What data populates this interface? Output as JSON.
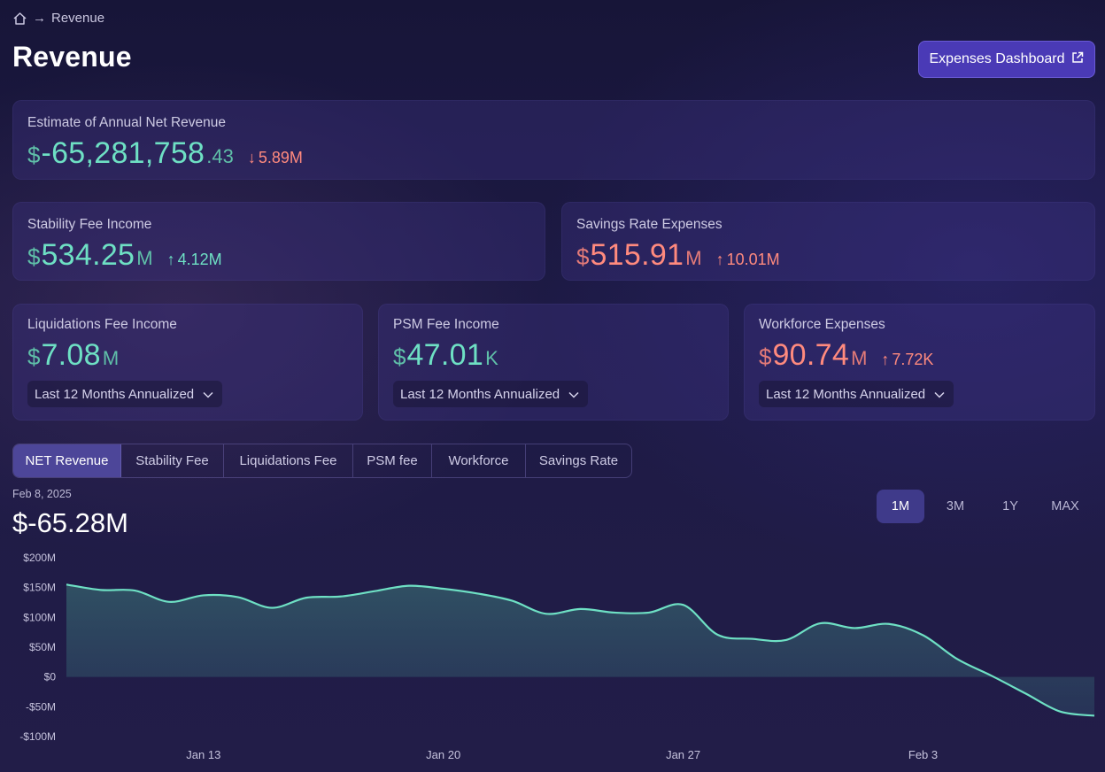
{
  "breadcrumb": {
    "home_icon": "home-icon",
    "arrow": "→",
    "current": "Revenue"
  },
  "page": {
    "title": "Revenue"
  },
  "header": {
    "expenses_button_label": "Expenses Dashboard",
    "expenses_button_icon": "external-link-icon"
  },
  "colors": {
    "accent": "#4a3ab6",
    "positive": "#6ee0c4",
    "negative": "#ff8a7e",
    "line": "#6ee0c4"
  },
  "cards": {
    "net": {
      "label": "Estimate of Annual Net Revenue",
      "currency": "$",
      "value": "-65,281,758",
      "suffix": ".43",
      "delta_arrow": "↓",
      "delta": "5.89M"
    },
    "stability": {
      "label": "Stability Fee Income",
      "currency": "$",
      "value": "534.25",
      "suffix": "M",
      "delta_arrow": "↑",
      "delta": "4.12M"
    },
    "savings": {
      "label": "Savings Rate Expenses",
      "currency": "$",
      "value": "515.91",
      "suffix": "M",
      "delta_arrow": "↑",
      "delta": "10.01M"
    },
    "liquidations": {
      "label": "Liquidations Fee Income",
      "currency": "$",
      "value": "7.08",
      "suffix": "M",
      "dropdown": "Last 12 Months Annualized"
    },
    "psm": {
      "label": "PSM Fee Income",
      "currency": "$",
      "value": "47.01",
      "suffix": "K",
      "dropdown": "Last 12 Months Annualized"
    },
    "workforce": {
      "label": "Workforce Expenses",
      "currency": "$",
      "value": "90.74",
      "suffix": "M",
      "delta_arrow": "↑",
      "delta": "7.72K",
      "dropdown": "Last 12 Months Annualized"
    }
  },
  "tabs": [
    {
      "label": "NET Revenue",
      "active": true
    },
    {
      "label": "Stability Fee",
      "active": false
    },
    {
      "label": "Liquidations Fee",
      "active": false
    },
    {
      "label": "PSM fee",
      "active": false
    },
    {
      "label": "Workforce",
      "active": false
    },
    {
      "label": "Savings Rate",
      "active": false
    }
  ],
  "chart_header": {
    "date": "Feb 8, 2025",
    "value": "$-65.28M"
  },
  "ranges": [
    {
      "label": "1M",
      "active": true
    },
    {
      "label": "3M",
      "active": false
    },
    {
      "label": "1Y",
      "active": false
    },
    {
      "label": "MAX",
      "active": false
    }
  ],
  "chart_data": {
    "type": "area",
    "title": "",
    "xlabel": "",
    "ylabel": "",
    "y_tick_labels": [
      "$200M",
      "$150M",
      "$100M",
      "$50M",
      "$0",
      "-$50M",
      "-$100M"
    ],
    "y_ticks": [
      200,
      150,
      100,
      50,
      0,
      -50,
      -100
    ],
    "ylim": [
      -100,
      200
    ],
    "x_tick_labels": [
      "Jan 13",
      "Jan 20",
      "Jan 27",
      "Feb 3"
    ],
    "x_ticks": [
      "2025-01-13",
      "2025-01-20",
      "2025-01-27",
      "2025-02-03"
    ],
    "x_range": [
      "2025-01-09",
      "2025-02-08"
    ],
    "grid": false,
    "series": [
      {
        "x": [
          "2025-01-09",
          "2025-01-10",
          "2025-01-11",
          "2025-01-12",
          "2025-01-13",
          "2025-01-14",
          "2025-01-15",
          "2025-01-16",
          "2025-01-17",
          "2025-01-18",
          "2025-01-19",
          "2025-01-20",
          "2025-01-21",
          "2025-01-22",
          "2025-01-23",
          "2025-01-24",
          "2025-01-25",
          "2025-01-26",
          "2025-01-27",
          "2025-01-28",
          "2025-01-29",
          "2025-01-30",
          "2025-01-31",
          "2025-02-01",
          "2025-02-02",
          "2025-02-03",
          "2025-02-04",
          "2025-02-05",
          "2025-02-06",
          "2025-02-07",
          "2025-02-08"
        ],
        "values": [
          155,
          146,
          145,
          126,
          137,
          134,
          116,
          133,
          135,
          144,
          153,
          148,
          140,
          128,
          106,
          114,
          108,
          108,
          121,
          71,
          64,
          62,
          90,
          82,
          89,
          70,
          30,
          2,
          -28,
          -58,
          -65
        ]
      }
    ]
  }
}
